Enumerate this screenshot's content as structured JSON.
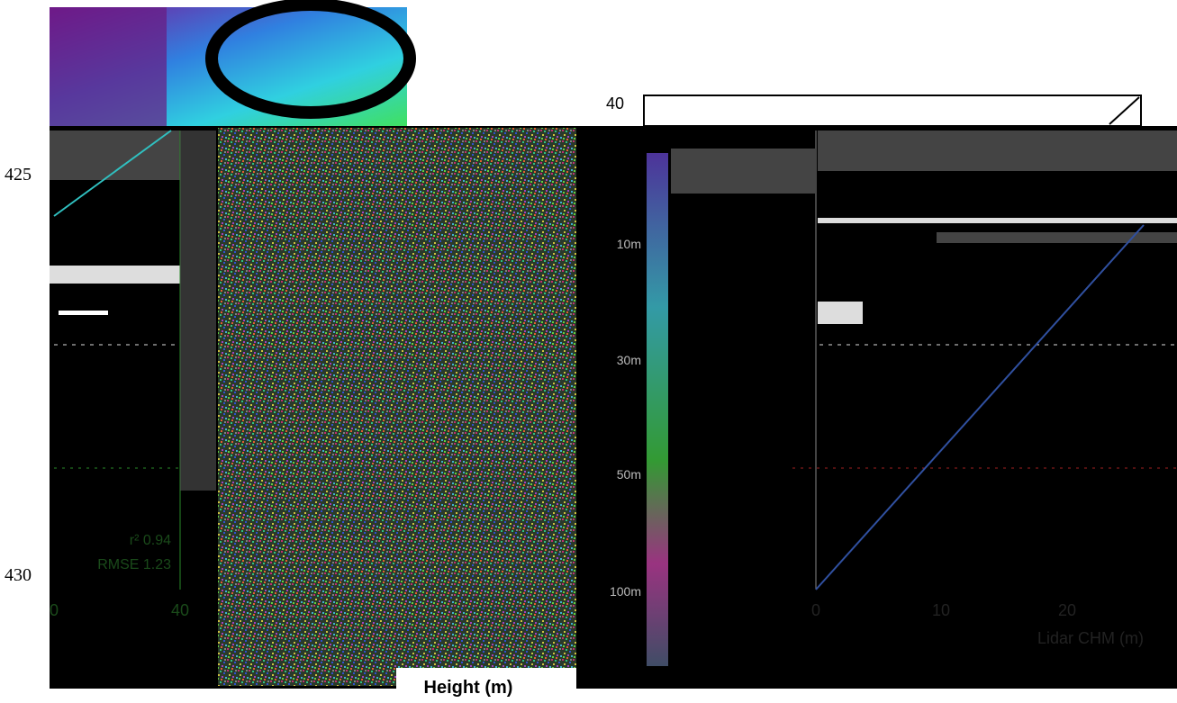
{
  "left_axis": {
    "labels": [
      "425",
      "430"
    ]
  },
  "top_axis": {
    "label": "40"
  },
  "left_panel": {
    "stats": [
      "r² 0.94",
      "RMSE 1.23"
    ],
    "x_labels": [
      "0",
      "40"
    ]
  },
  "colorbar": {
    "labels": [
      "10m",
      "30m",
      "50m",
      "100m"
    ]
  },
  "right_panel": {
    "x_labels": [
      "0",
      "10",
      "20"
    ],
    "x_title": "Lidar CHM (m)"
  },
  "footer": {
    "label": "Height (m)"
  }
}
